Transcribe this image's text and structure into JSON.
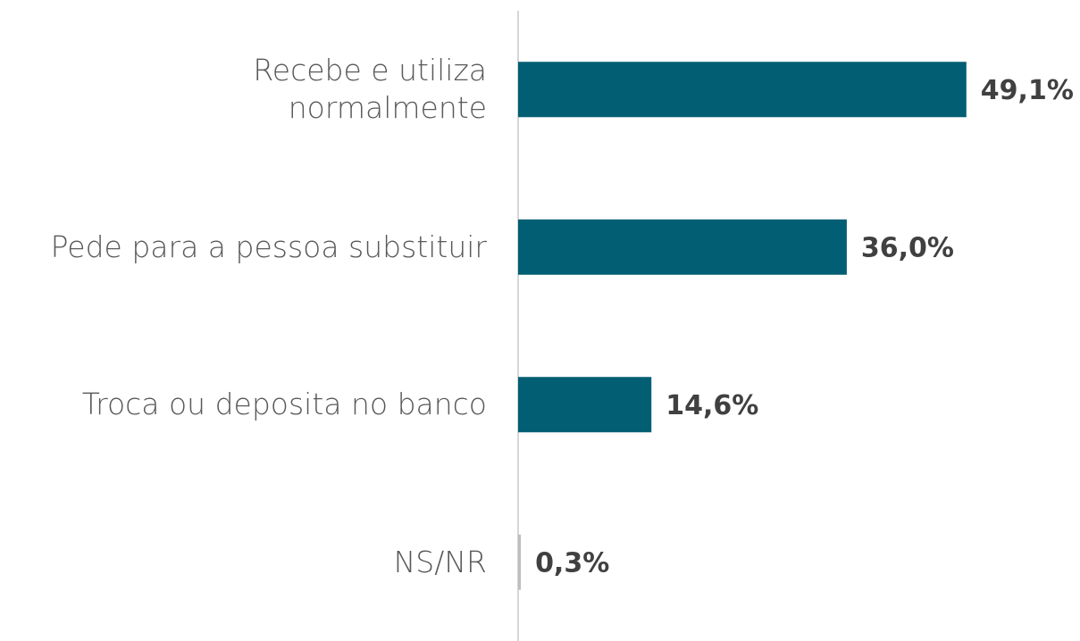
{
  "chart_data": {
    "type": "bar",
    "orientation": "horizontal",
    "categories": [
      "Recebe e utiliza\nnormalmente",
      "Pede para a pessoa substituir",
      "Troca ou deposita no banco",
      "NS/NR"
    ],
    "values": [
      49.1,
      36.0,
      14.6,
      0.3
    ],
    "value_labels": [
      "49,1%",
      "36,0%",
      "14,6%",
      "0,3%"
    ],
    "colors": [
      "#025e73",
      "#025e73",
      "#025e73",
      "#bfbfbf"
    ],
    "xlim": [
      0,
      50
    ]
  }
}
